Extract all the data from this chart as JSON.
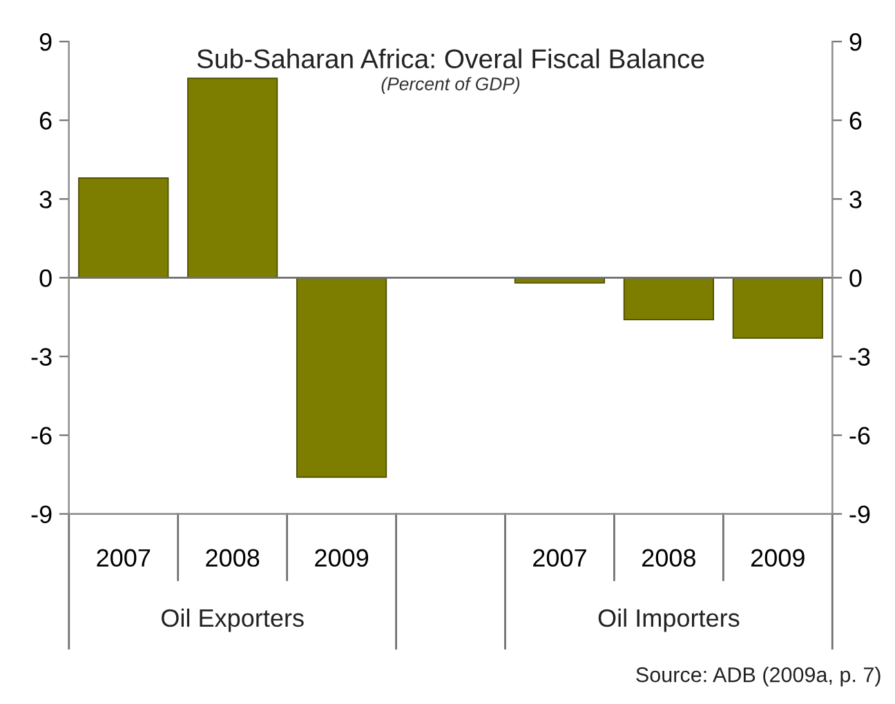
{
  "chart_data": {
    "type": "bar",
    "title": "Sub-Saharan Africa: Overal Fiscal Balance",
    "subtitle": "(Percent of GDP)",
    "categories": [
      "2007",
      "2008",
      "2009",
      null,
      "2007",
      "2008",
      "2009"
    ],
    "values": [
      3.8,
      7.6,
      -7.6,
      null,
      -0.2,
      -1.6,
      -2.3
    ],
    "color": "#7d7d00",
    "ylim": [
      -9,
      9
    ],
    "yticks": [
      -9,
      -6,
      -3,
      0,
      3,
      6,
      9
    ],
    "y2lim": [
      -9,
      9
    ],
    "y2ticks": [
      -9,
      -6,
      -3,
      0,
      3,
      6,
      9
    ],
    "ref_lines": [
      {
        "axis": "y",
        "value": 0,
        "color": "#707070"
      }
    ],
    "annotations": [
      "Oil Exporters",
      "Oil Importers",
      "Source: ADB (2009a, p. 7)"
    ]
  }
}
